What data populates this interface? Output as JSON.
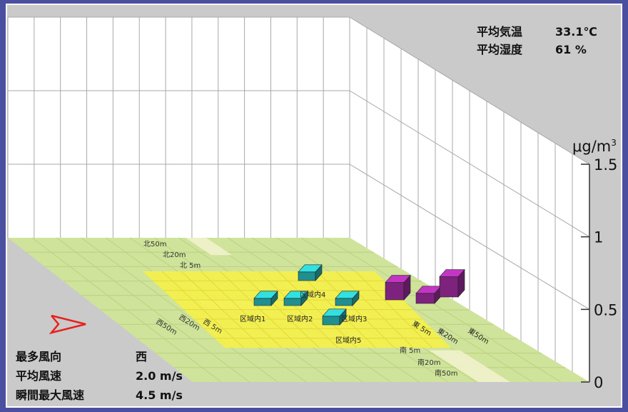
{
  "chart_data": {
    "type": "bar3d",
    "title": "",
    "unit": "μg/m",
    "unit_superscript": "3",
    "zlim": [
      0,
      1.5
    ],
    "z_ticks": [
      "0",
      "0.5",
      "1",
      "1.5"
    ],
    "categories": [
      "区域内1",
      "区域内2",
      "区域内3",
      "区域内4",
      "区域内5",
      "東 5m",
      "東20m",
      "東50m"
    ],
    "values": [
      0.05,
      0.05,
      0.05,
      0.06,
      0.06,
      0.12,
      0.07,
      0.14
    ],
    "colors": {
      "inside_bars": "#27b3b3",
      "east_bars": "#9c2b9c",
      "floor": "#cfe39a",
      "zone": "#f4ef4a",
      "background": "#c8c8c8"
    },
    "floor_labels": {
      "north": [
        "北50m",
        "北20m",
        "北 5m"
      ],
      "west": [
        "西 5m",
        "西20m",
        "西50m"
      ],
      "south": [
        "南 5m",
        "南20m",
        "南50m"
      ]
    }
  },
  "conditions": {
    "temperature_label": "平均気温",
    "temperature_value": "33.1℃",
    "humidity_label": "平均湿度",
    "humidity_value": "61 %"
  },
  "wind": {
    "direction_label": "最多風向",
    "direction_value": "西",
    "speed_label": "平均風速",
    "speed_value": "2.0 m/s",
    "gust_label": "瞬間最大風速",
    "gust_value": "4.5 m/s",
    "arrow_icon": "wind-direction-arrow-icon"
  }
}
